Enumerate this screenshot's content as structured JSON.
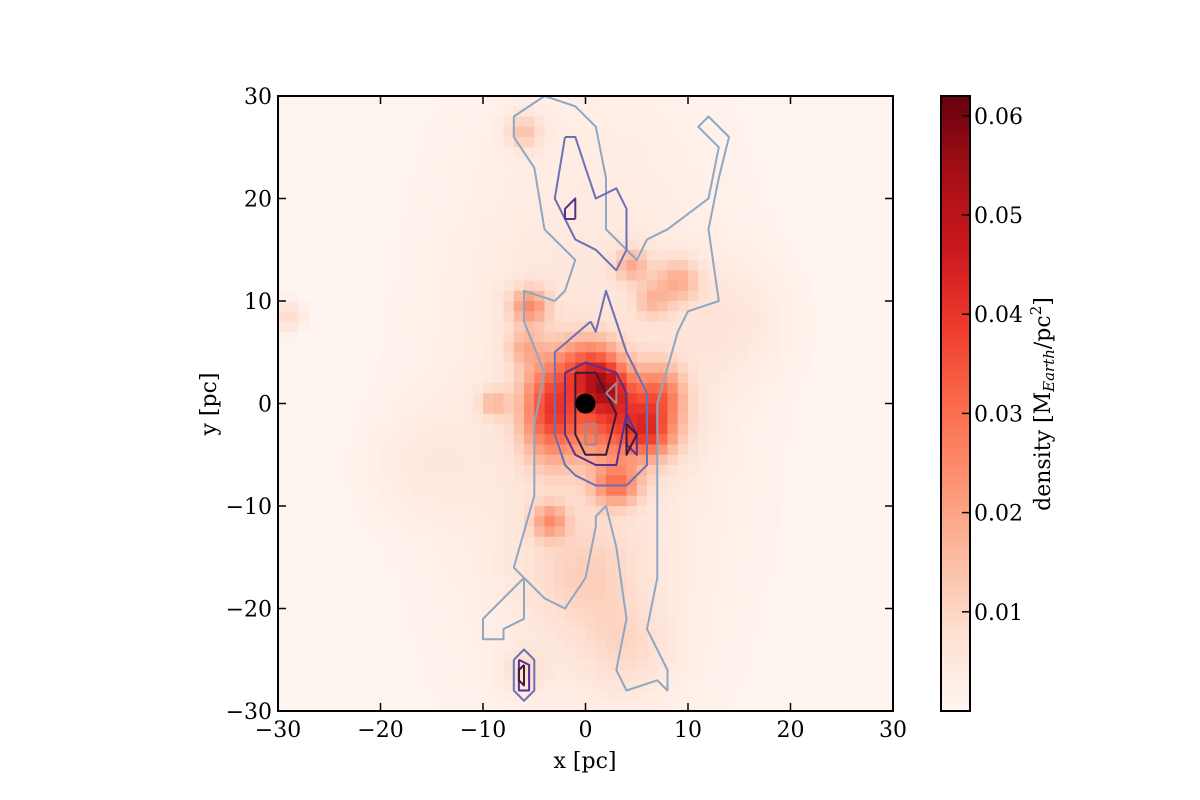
{
  "chart_data": {
    "type": "heatmap",
    "title": "",
    "xlabel": "x [pc]",
    "ylabel": "y [pc]",
    "xlim": [
      -30,
      30
    ],
    "ylim": [
      -30,
      30
    ],
    "xticks": [
      -30,
      -20,
      -10,
      0,
      10,
      20,
      30
    ],
    "yticks": [
      -30,
      -20,
      -10,
      0,
      10,
      20,
      30
    ],
    "colorbar": {
      "label_main": "density [M",
      "label_sub": "Earth",
      "label_mid": "/pc",
      "label_sup": "2",
      "label_end": "]",
      "range": [
        0.0,
        0.062
      ],
      "ticks": [
        0.01,
        0.02,
        0.03,
        0.04,
        0.05,
        0.06
      ],
      "colormap": "Reds",
      "colors": [
        "#fff5f0",
        "#fee0d2",
        "#fcbba1",
        "#fc9272",
        "#fb6a4a",
        "#ef3b2c",
        "#cb181d",
        "#a50f15",
        "#67000d"
      ]
    },
    "density_blobs": [
      {
        "x": -3.5,
        "y": -0.5,
        "sx": 2.0,
        "sy": 3.5,
        "v": 0.03
      },
      {
        "x": 3.5,
        "y": -1.5,
        "sx": 3.5,
        "sy": 3.0,
        "v": 0.032
      },
      {
        "x": 0.5,
        "y": 3.5,
        "sx": 2.0,
        "sy": 2.0,
        "v": 0.026
      },
      {
        "x": 2.0,
        "y": 1.5,
        "sx": 1.5,
        "sy": 1.5,
        "v": 0.02
      },
      {
        "x": 3.0,
        "y": -8.0,
        "sx": 1.6,
        "sy": 1.4,
        "v": 0.022
      },
      {
        "x": 7.5,
        "y": 1.0,
        "sx": 1.5,
        "sy": 2.0,
        "v": 0.016
      },
      {
        "x": 6.5,
        "y": -3.0,
        "sx": 1.5,
        "sy": 1.5,
        "v": 0.015
      },
      {
        "x": -5.5,
        "y": 9.5,
        "sx": 1.3,
        "sy": 1.3,
        "v": 0.02
      },
      {
        "x": -3.5,
        "y": -11.5,
        "sx": 1.2,
        "sy": 1.2,
        "v": 0.018
      },
      {
        "x": -9.0,
        "y": 0.0,
        "sx": 1.0,
        "sy": 1.0,
        "v": 0.012
      },
      {
        "x": -6.0,
        "y": 5.5,
        "sx": 1.2,
        "sy": 1.2,
        "v": 0.011
      },
      {
        "x": 4.5,
        "y": 13.5,
        "sx": 1.2,
        "sy": 1.2,
        "v": 0.014
      },
      {
        "x": 9.0,
        "y": 12.0,
        "sx": 1.5,
        "sy": 1.5,
        "v": 0.014
      },
      {
        "x": 6.5,
        "y": 10.0,
        "sx": 1.2,
        "sy": 1.2,
        "v": 0.011
      },
      {
        "x": -6.0,
        "y": 26.5,
        "sx": 1.2,
        "sy": 1.2,
        "v": 0.012
      },
      {
        "x": -29.0,
        "y": 8.5,
        "sx": 1.0,
        "sy": 1.0,
        "v": 0.009
      },
      {
        "x": 0.0,
        "y": -17.0,
        "sx": 4.0,
        "sy": 4.0,
        "v": 0.007
      },
      {
        "x": 4.0,
        "y": -24.0,
        "sx": 3.0,
        "sy": 3.0,
        "v": 0.006
      },
      {
        "x": -6.0,
        "y": -26.0,
        "sx": 1.5,
        "sy": 1.5,
        "v": 0.006
      },
      {
        "x": 0.0,
        "y": 0.0,
        "sx": 10.0,
        "sy": 22.0,
        "v": 0.006
      },
      {
        "x": 14.0,
        "y": 8.0,
        "sx": 4.0,
        "sy": 4.0,
        "v": 0.004
      },
      {
        "x": -16.0,
        "y": -6.0,
        "sx": 4.0,
        "sy": 4.0,
        "v": 0.003
      }
    ],
    "contours": [
      {
        "level": 1,
        "color": "#8ea7c3",
        "paths": [
          [
            [
              -3,
              10
            ],
            [
              -6,
              11
            ],
            [
              -6,
              8
            ],
            [
              -4,
              3
            ],
            [
              -5,
              -2
            ],
            [
              -5,
              -9
            ],
            [
              -7,
              -16
            ],
            [
              -6,
              -17
            ],
            [
              -10,
              -21
            ],
            [
              -10,
              -23
            ],
            [
              -8,
              -23
            ],
            [
              -8,
              -22
            ],
            [
              -6,
              -21
            ],
            [
              -6,
              -17
            ],
            [
              -4,
              -19
            ],
            [
              -2,
              -20
            ],
            [
              0,
              -17
            ],
            [
              1,
              -12
            ],
            [
              1,
              -11
            ],
            [
              2,
              -10
            ],
            [
              3,
              -14
            ],
            [
              4,
              -21
            ],
            [
              3,
              -26
            ],
            [
              4,
              -28
            ],
            [
              7,
              -27
            ],
            [
              8,
              -28
            ],
            [
              8,
              -26
            ],
            [
              6,
              -22
            ],
            [
              7,
              -17
            ],
            [
              7,
              -10
            ],
            [
              7,
              -6
            ],
            [
              7,
              0
            ],
            [
              9,
              7
            ],
            [
              10,
              9
            ],
            [
              13,
              10
            ],
            [
              12,
              17
            ],
            [
              13,
              22
            ],
            [
              14,
              26
            ],
            [
              12,
              28
            ],
            [
              11,
              27
            ],
            [
              13,
              25
            ],
            [
              12,
              20
            ],
            [
              8,
              17
            ],
            [
              6,
              16
            ],
            [
              5,
              14
            ],
            [
              3,
              16
            ],
            [
              2,
              17
            ],
            [
              2,
              22
            ],
            [
              1,
              27
            ],
            [
              -1,
              29
            ],
            [
              -4,
              30
            ],
            [
              -7,
              28
            ],
            [
              -7,
              26
            ],
            [
              -5,
              23
            ],
            [
              -4,
              17
            ],
            [
              -1,
              14
            ],
            [
              -2,
              11
            ],
            [
              -3,
              10
            ]
          ]
        ]
      },
      {
        "level": 2,
        "color": "#6a72b5",
        "paths": [
          [
            [
              0.5,
              8
            ],
            [
              -3,
              5
            ],
            [
              -3,
              -3
            ],
            [
              -2,
              -6
            ],
            [
              -1,
              -7
            ],
            [
              1,
              -8
            ],
            [
              4,
              -8
            ],
            [
              6,
              -6
            ],
            [
              6,
              -2
            ],
            [
              6,
              1
            ],
            [
              4,
              5
            ],
            [
              3,
              8
            ],
            [
              2,
              11
            ],
            [
              1,
              7
            ],
            [
              0.5,
              8
            ]
          ],
          [
            [
              -2,
              26
            ],
            [
              -3,
              20
            ],
            [
              -1,
              16
            ],
            [
              1,
              15
            ],
            [
              3,
              13
            ],
            [
              4,
              15
            ],
            [
              4,
              19
            ],
            [
              3,
              21
            ],
            [
              1,
              20
            ],
            [
              0,
              23
            ],
            [
              -1,
              26
            ],
            [
              -2,
              26
            ]
          ],
          [
            [
              -7,
              -25
            ],
            [
              -6,
              -24
            ],
            [
              -5,
              -25
            ],
            [
              -5,
              -28
            ],
            [
              -6,
              -29
            ],
            [
              -7,
              -28
            ],
            [
              -7,
              -25
            ]
          ]
        ]
      },
      {
        "level": 3,
        "color": "#5b2f8e",
        "paths": [
          [
            [
              -1,
              18
            ],
            [
              -1,
              20
            ],
            [
              -2,
              19
            ],
            [
              -2,
              18
            ],
            [
              -1,
              18
            ]
          ],
          [
            [
              -2,
              3
            ],
            [
              0,
              4
            ],
            [
              3,
              3
            ],
            [
              4,
              1
            ],
            [
              4,
              -4
            ],
            [
              5,
              -5
            ],
            [
              5,
              -3
            ],
            [
              4,
              -1
            ],
            [
              3,
              -6
            ],
            [
              1,
              -6
            ],
            [
              -1,
              -5
            ],
            [
              -2,
              -3
            ],
            [
              -2,
              3
            ]
          ],
          [
            [
              -6.5,
              -25
            ],
            [
              -5.5,
              -25.5
            ],
            [
              -5.5,
              -28
            ],
            [
              -6.5,
              -28
            ],
            [
              -6.5,
              -25
            ]
          ]
        ]
      },
      {
        "level": 4,
        "color": "#3b1a3a",
        "paths": [
          [
            [
              -1,
              3
            ],
            [
              1,
              3
            ],
            [
              2,
              1
            ],
            [
              3,
              -1
            ],
            [
              2,
              -5
            ],
            [
              0,
              -5
            ],
            [
              -1,
              -3
            ],
            [
              -1,
              3
            ]
          ],
          [
            [
              4,
              -2
            ],
            [
              5,
              -3
            ],
            [
              4,
              -5
            ],
            [
              4,
              -2
            ]
          ],
          [
            [
              -6,
              -25.5
            ],
            [
              -6,
              -27.5
            ],
            [
              -6.5,
              -27
            ],
            [
              -6.5,
              -26
            ],
            [
              -6,
              -25.5
            ]
          ]
        ]
      },
      {
        "level": 5,
        "color": "#a08a8f",
        "paths": [
          [
            [
              0,
              -2
            ],
            [
              1,
              -2
            ],
            [
              1,
              -4
            ],
            [
              0,
              -4
            ],
            [
              0,
              -2
            ]
          ],
          [
            [
              2,
              1
            ],
            [
              3,
              2
            ],
            [
              3,
              0
            ],
            [
              2,
              1
            ]
          ]
        ]
      }
    ],
    "marker": {
      "x": 0.0,
      "y": 0.0,
      "color": "#000000"
    }
  }
}
